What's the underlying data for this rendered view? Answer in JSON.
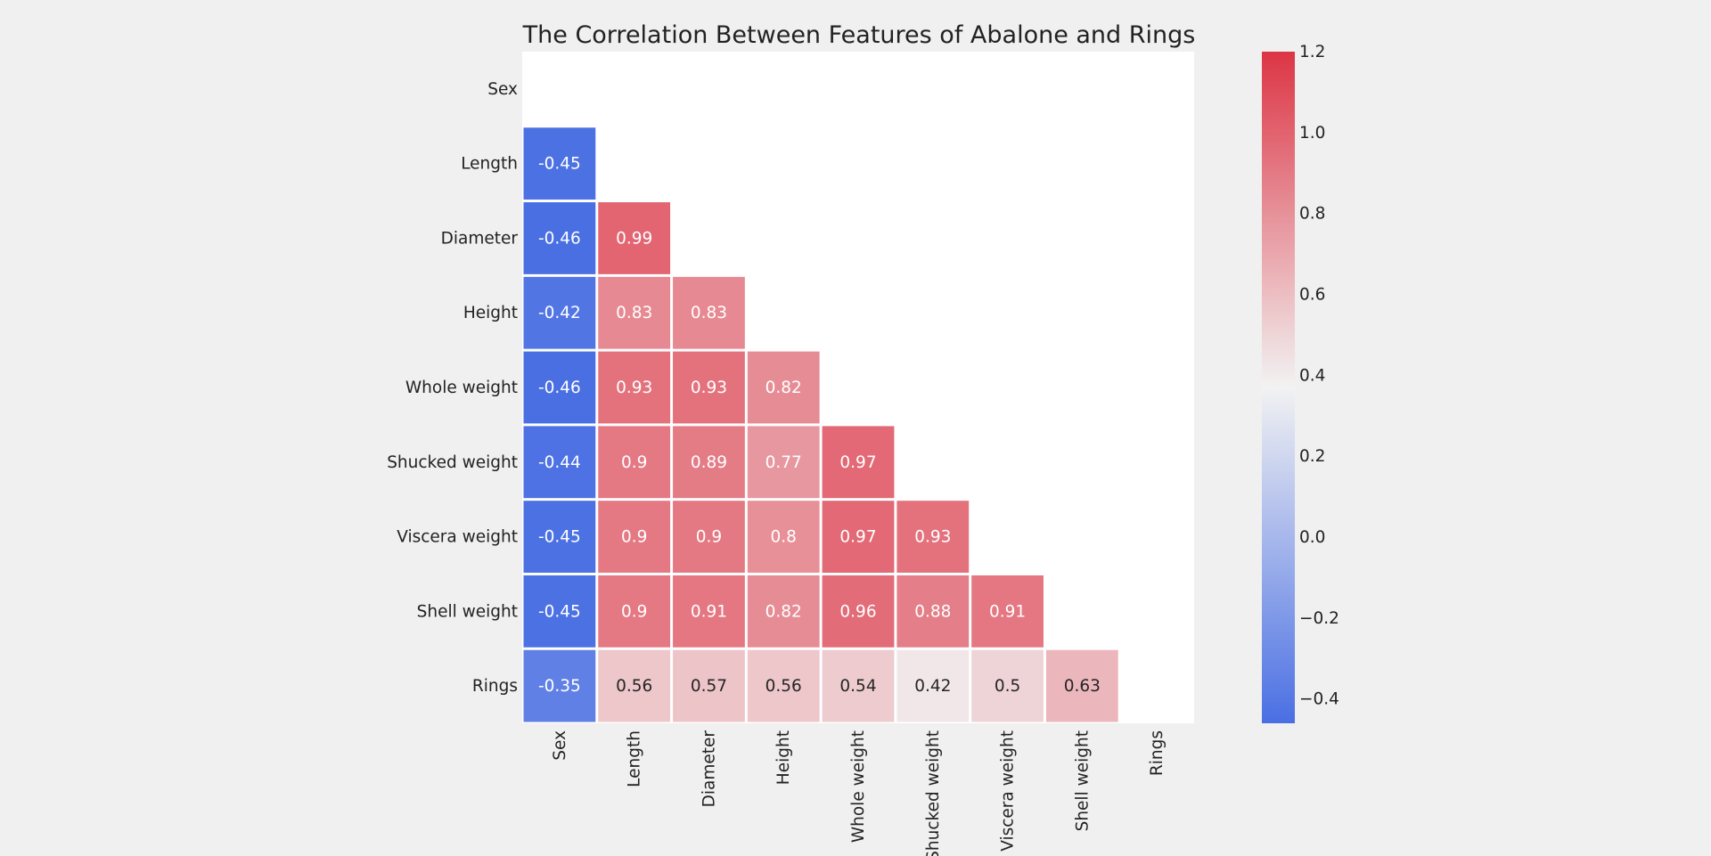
{
  "chart_data": {
    "type": "heatmap",
    "title": "The Correlation Between Features of Abalone and Rings",
    "xlabel": "",
    "ylabel": "",
    "rows": [
      "Sex",
      "Length",
      "Diameter",
      "Height",
      "Whole weight",
      "Shucked weight",
      "Viscera weight",
      "Shell weight",
      "Rings"
    ],
    "columns": [
      "Sex",
      "Length",
      "Diameter",
      "Height",
      "Whole weight",
      "Shucked weight",
      "Viscera weight",
      "Shell weight",
      "Rings"
    ],
    "mask": "upper-triangle-including-diagonal",
    "values": [
      [],
      [
        -0.45
      ],
      [
        -0.46,
        0.99
      ],
      [
        -0.42,
        0.83,
        0.83
      ],
      [
        -0.46,
        0.93,
        0.93,
        0.82
      ],
      [
        -0.44,
        0.9,
        0.89,
        0.77,
        0.97
      ],
      [
        -0.45,
        0.9,
        0.9,
        0.8,
        0.97,
        0.93
      ],
      [
        -0.45,
        0.9,
        0.91,
        0.82,
        0.96,
        0.88,
        0.91
      ],
      [
        -0.35,
        0.56,
        0.57,
        0.56,
        0.54,
        0.42,
        0.5,
        0.63
      ]
    ],
    "colorbar": {
      "vmin": -0.46,
      "vmax": 1.2,
      "center": 0.37,
      "ticks": [
        "1.2",
        "1.0",
        "0.8",
        "0.6",
        "0.4",
        "0.2",
        "0.0",
        "−0.2",
        "−0.4"
      ],
      "tick_values": [
        1.2,
        1.0,
        0.8,
        0.6,
        0.4,
        0.2,
        0.0,
        -0.2,
        -0.4
      ],
      "low_color": "#4a6fe3",
      "mid_color": "#f2f2f2",
      "high_color": "#dc3545"
    },
    "grid": false,
    "cell_separator_color": "#ffffff"
  }
}
